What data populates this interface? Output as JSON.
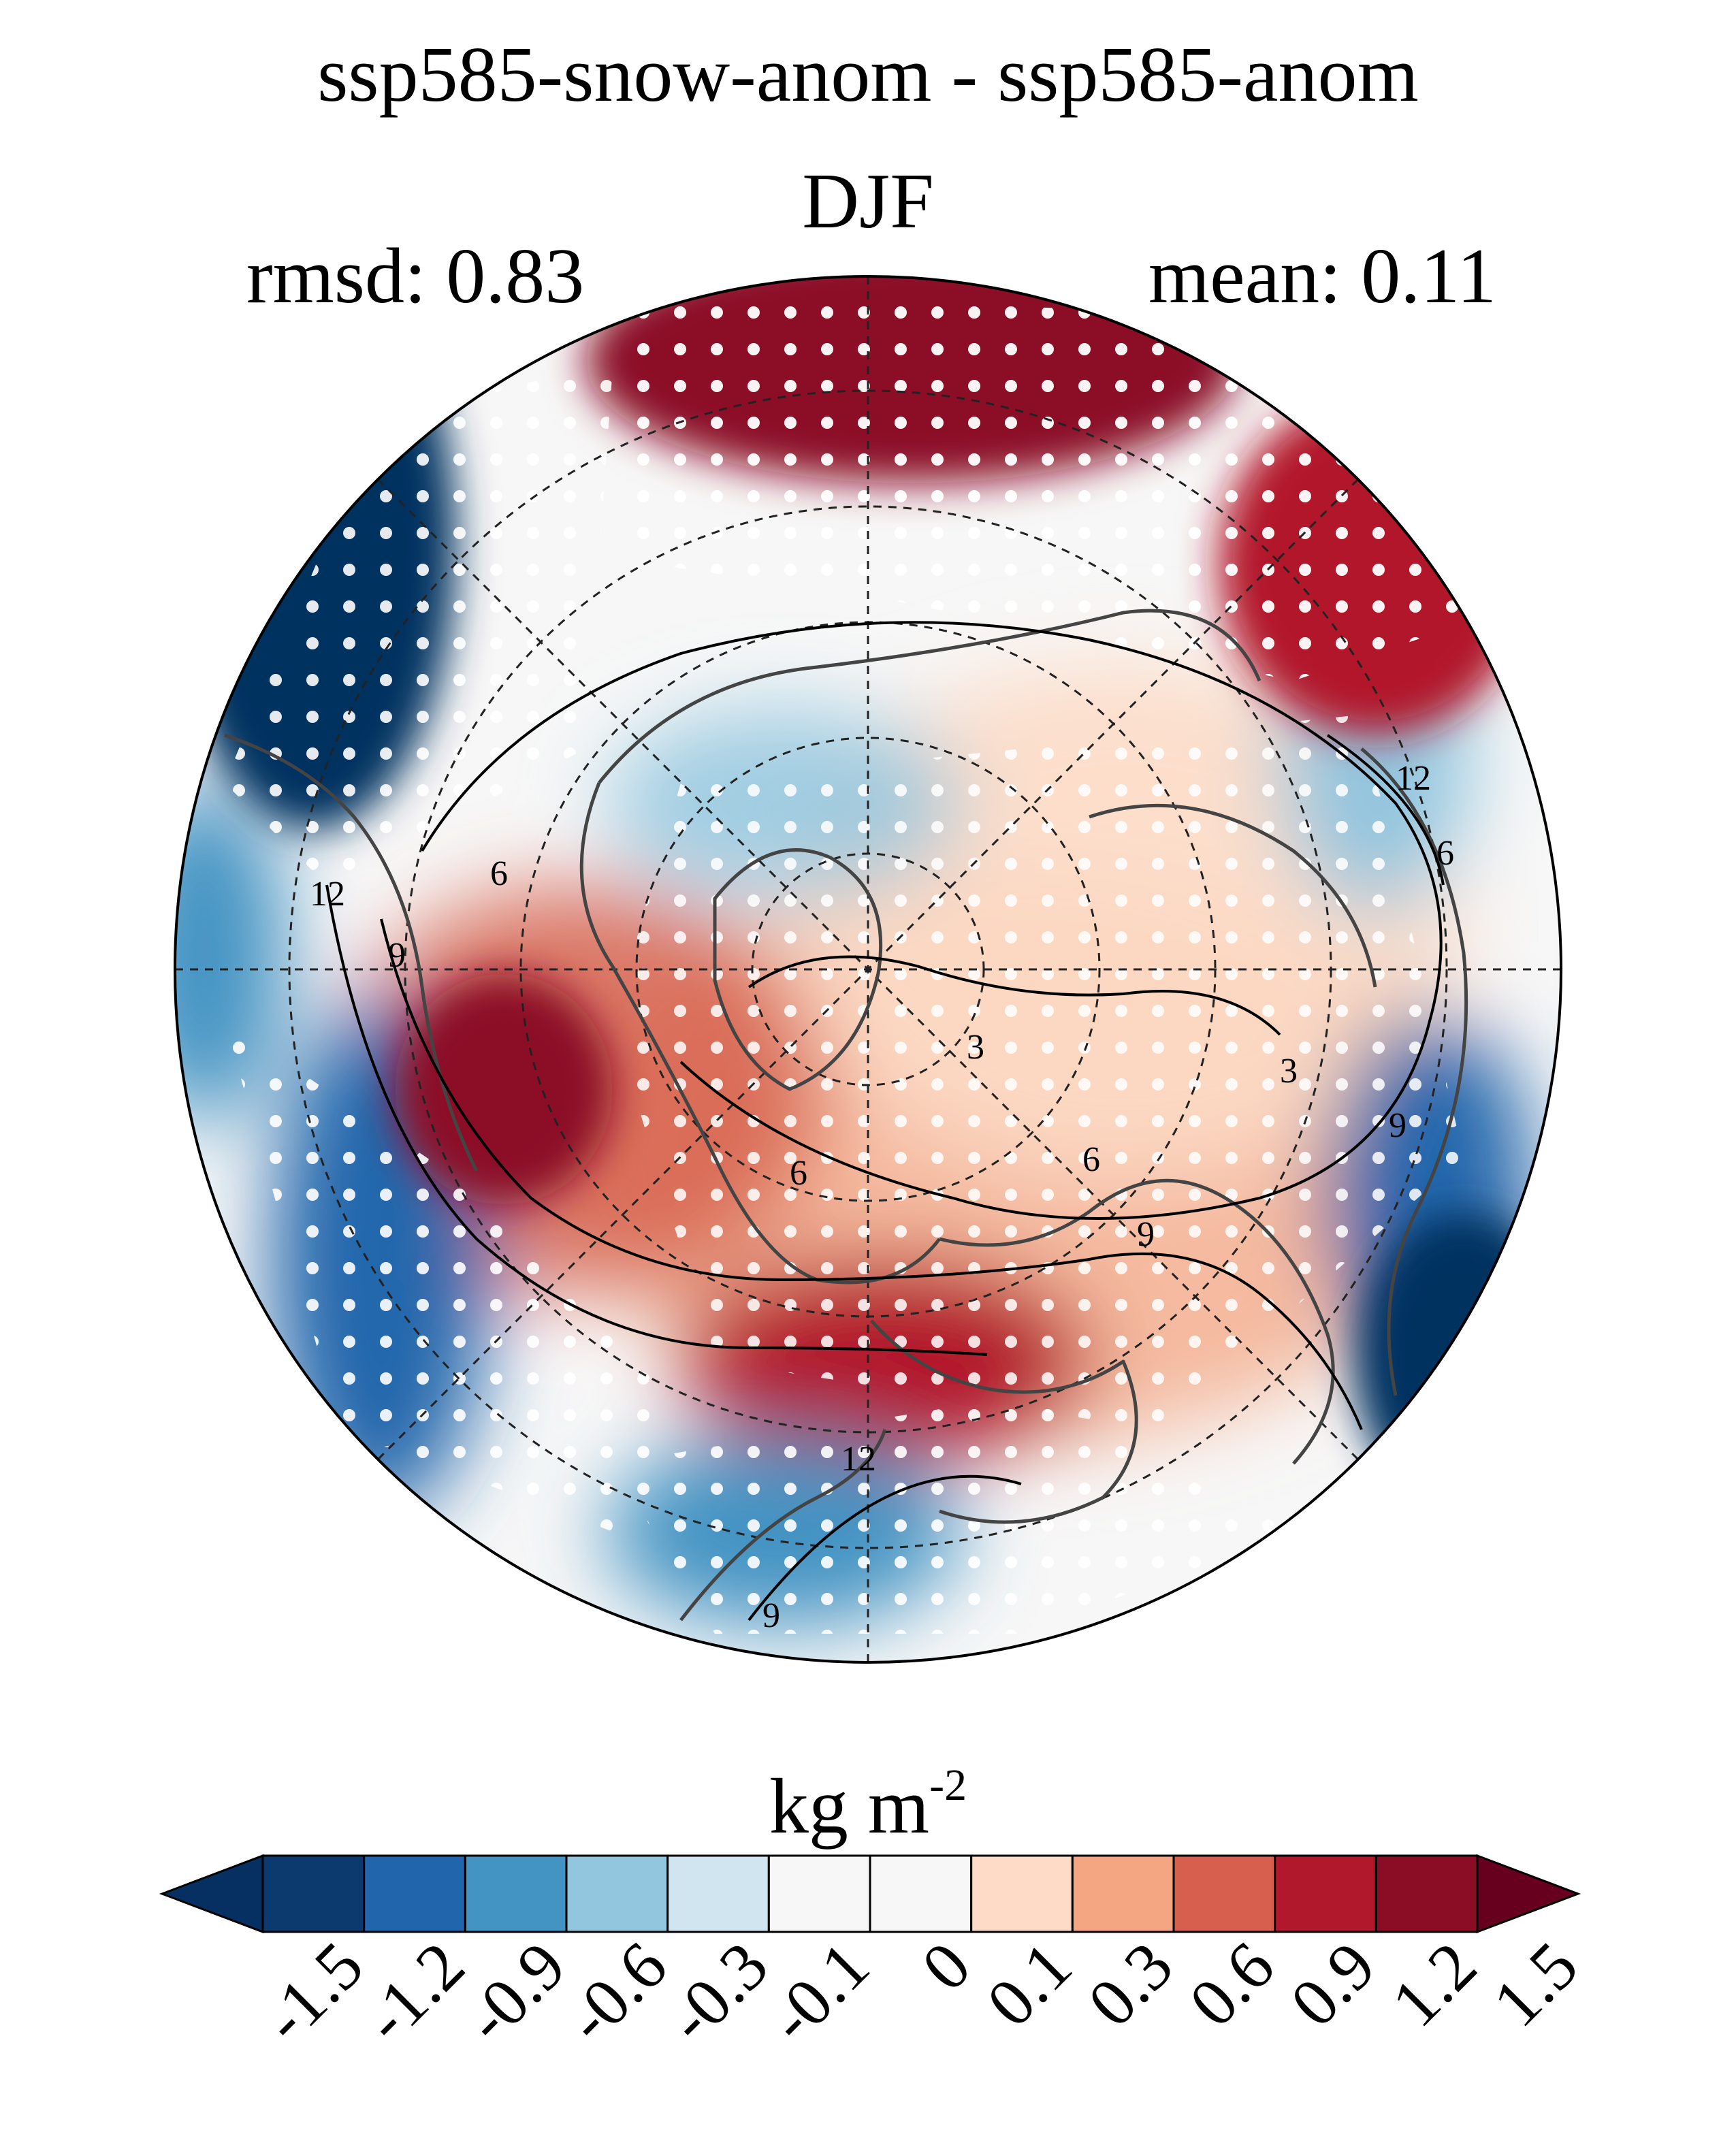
{
  "chart_data": {
    "type": "heatmap",
    "projection": "north-polar-stereographic",
    "title": "ssp585-snow-anom - ssp585-anom",
    "subtitle": "DJF",
    "stats": {
      "rmsd_label": "rmsd: 0.83",
      "mean_label": "mean: 0.11"
    },
    "units": {
      "base": "kg m",
      "exponent": "-2"
    },
    "colorbar": {
      "levels": [
        "-1.5",
        "-1.2",
        "-0.9",
        "-0.6",
        "-0.3",
        "-0.1",
        "0",
        "0.1",
        "0.3",
        "0.6",
        "0.9",
        "1.2",
        "1.5"
      ],
      "colors": [
        "#053061",
        "#0d3a6e",
        "#2166ac",
        "#4393c3",
        "#92c5de",
        "#d1e5f0",
        "#f7f7f7",
        "#f7f7f7",
        "#fddbc7",
        "#f4a582",
        "#d6604d",
        "#b2182b",
        "#8b0c25",
        "#67001f"
      ],
      "extend": "both"
    },
    "contour_labels": [
      "3",
      "6",
      "9",
      "12",
      "6",
      "9",
      "12",
      "6",
      "9",
      "3",
      "9",
      "12",
      "6"
    ],
    "stippling": "white dots mark significant grid points"
  }
}
